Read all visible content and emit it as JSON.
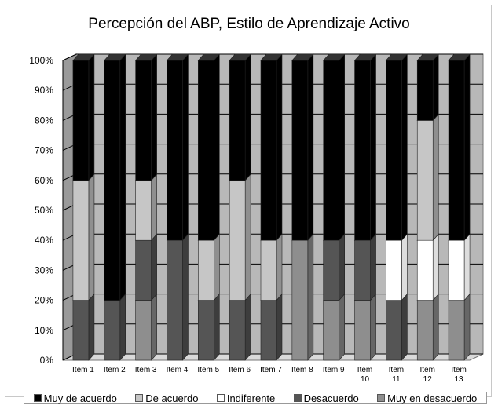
{
  "chart_data": {
    "type": "bar",
    "stacked": true,
    "percent": true,
    "three_d": true,
    "title": "Percepción del ABP, Estilo de Aprendizaje Activo",
    "xlabel": "",
    "ylabel": "",
    "ylim": [
      0,
      100
    ],
    "y_ticks": [
      "0%",
      "10%",
      "20%",
      "30%",
      "40%",
      "50%",
      "60%",
      "70%",
      "80%",
      "90%",
      "100%"
    ],
    "categories": [
      "Item 1",
      "Item 2",
      "Item 3",
      "Item 4",
      "Item 5",
      "Item 6",
      "Item 7",
      "Item 8",
      "Item 9",
      "Item 10",
      "Item 11",
      "Item 12",
      "Item 13"
    ],
    "series": [
      {
        "name": "Muy en desacuerdo",
        "color": "#8e8e8e",
        "values": [
          0,
          0,
          20,
          0,
          0,
          0,
          0,
          40,
          20,
          20,
          0,
          20,
          20
        ]
      },
      {
        "name": "Desacuerdo",
        "color": "#555555",
        "values": [
          20,
          20,
          20,
          40,
          20,
          20,
          20,
          0,
          20,
          20,
          20,
          0,
          0
        ]
      },
      {
        "name": "Indiferente",
        "color": "#ffffff",
        "values": [
          0,
          0,
          0,
          0,
          0,
          0,
          0,
          0,
          0,
          0,
          20,
          20,
          20
        ]
      },
      {
        "name": "De acuerdo",
        "color": "#c6c6c6",
        "values": [
          40,
          0,
          20,
          0,
          20,
          40,
          20,
          0,
          0,
          0,
          0,
          40,
          0
        ]
      },
      {
        "name": "Muy de acuerdo",
        "color": "#000000",
        "values": [
          40,
          80,
          40,
          60,
          60,
          40,
          60,
          60,
          60,
          60,
          60,
          20,
          60
        ]
      }
    ],
    "legend_position": "bottom",
    "grid": true
  },
  "legend": {
    "items": [
      {
        "label": "Muy de acuerdo",
        "color": "#000000"
      },
      {
        "label": "De acuerdo",
        "color": "#c6c6c6"
      },
      {
        "label": "Indiferente",
        "color": "#ffffff"
      },
      {
        "label": "Desacuerdo",
        "color": "#555555"
      },
      {
        "label": "Muy en desacuerdo",
        "color": "#8e8e8e"
      }
    ]
  }
}
